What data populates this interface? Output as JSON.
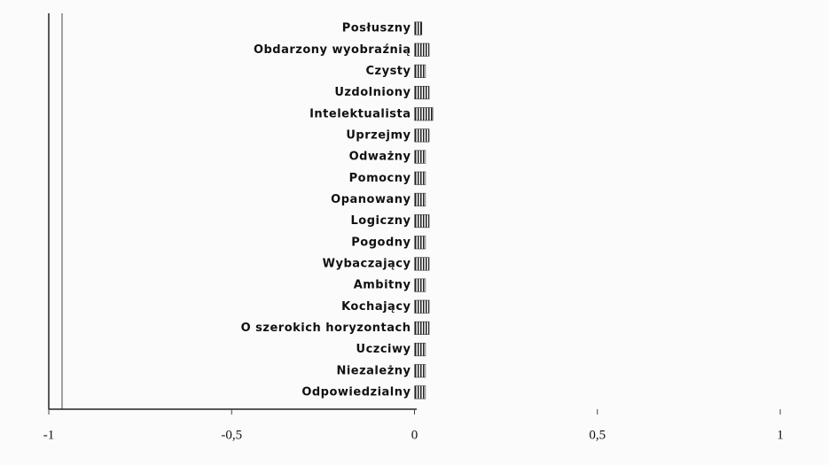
{
  "chart_data": {
    "type": "hbar",
    "categories": [
      "Posłuszny",
      "Obdarzony wyobraźnią",
      "Czysty",
      "Uzdolniony",
      "Intelektualista",
      "Uprzejmy",
      "Odważny",
      "Pomocny",
      "Opanowany",
      "Logiczny",
      "Pogodny",
      "Wybaczający",
      "Ambitny",
      "Kochający",
      "O szerokich horyzontach",
      "Uczciwy",
      "Niezależny",
      "Odpowiedzialny"
    ],
    "values": [
      0.02,
      0.04,
      0.03,
      0.04,
      0.05,
      0.04,
      0.03,
      0.03,
      0.03,
      0.04,
      0.03,
      0.04,
      0.03,
      0.04,
      0.04,
      0.03,
      0.03,
      0.03
    ],
    "color": "#333333",
    "xlim": [
      -1,
      1
    ],
    "xticks": [
      -1,
      {
        "value": -0.5,
        "label": "-0,5"
      },
      0,
      {
        "value": 0.5,
        "label": "0,5"
      },
      1
    ]
  }
}
